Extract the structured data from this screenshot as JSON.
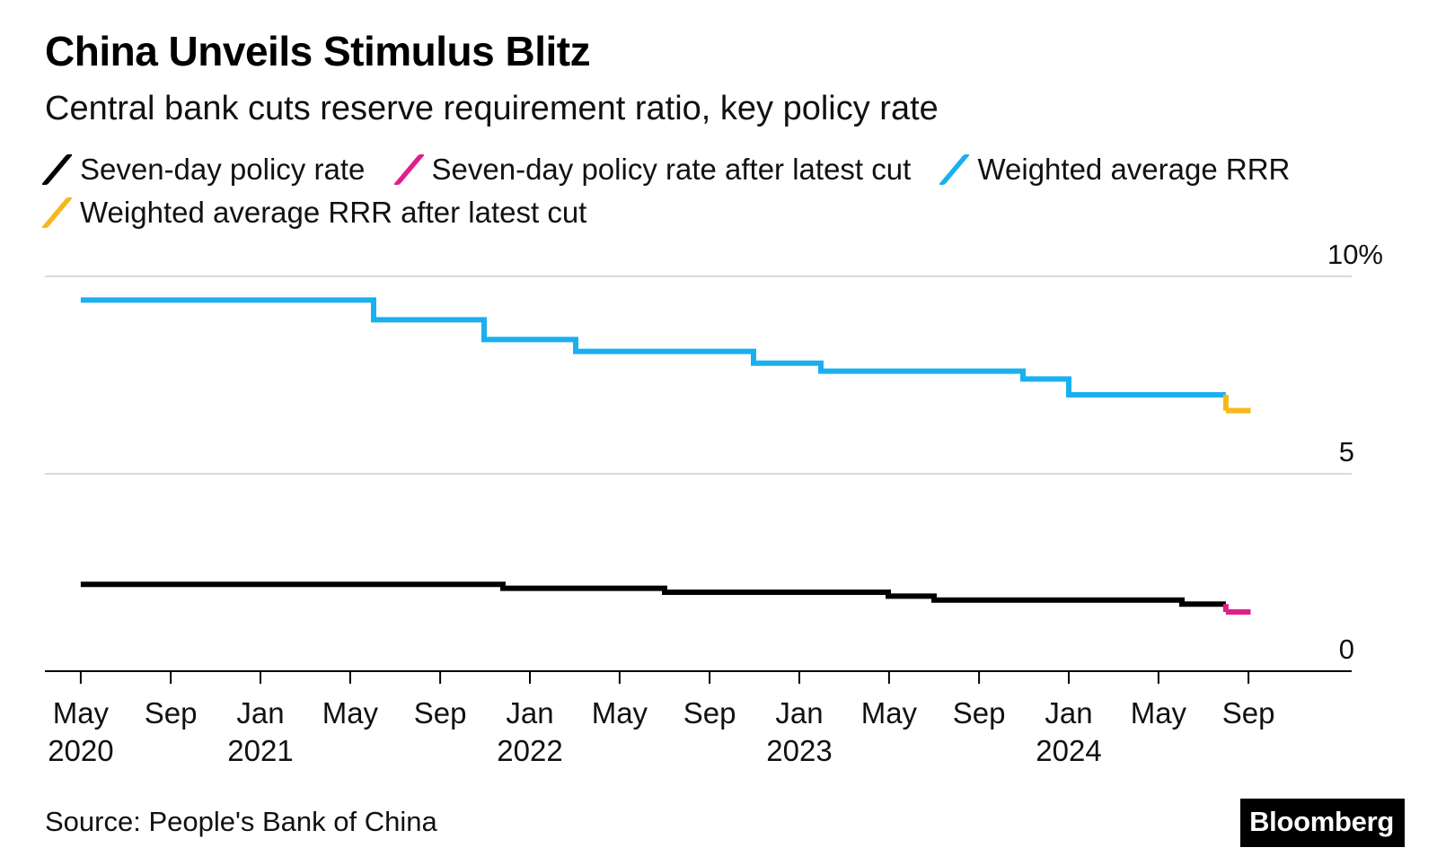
{
  "chart_data": {
    "type": "line",
    "title": "China Unveils Stimulus Blitz",
    "subtitle": "Central bank cuts reserve requirement ratio, key policy rate",
    "ylabel": "",
    "xlabel": "",
    "ylim": [
      0,
      10
    ],
    "yticks": [
      {
        "value": 0,
        "label": "0"
      },
      {
        "value": 5,
        "label": "5"
      },
      {
        "value": 10,
        "label": "10%"
      }
    ],
    "xticks": [
      {
        "date": 2020.333,
        "line1": "May",
        "line2": "2020"
      },
      {
        "date": 2020.667,
        "line1": "Sep",
        "line2": ""
      },
      {
        "date": 2021.0,
        "line1": "Jan",
        "line2": "2021"
      },
      {
        "date": 2021.333,
        "line1": "May",
        "line2": ""
      },
      {
        "date": 2021.667,
        "line1": "Sep",
        "line2": ""
      },
      {
        "date": 2022.0,
        "line1": "Jan",
        "line2": "2022"
      },
      {
        "date": 2022.333,
        "line1": "May",
        "line2": ""
      },
      {
        "date": 2022.667,
        "line1": "Sep",
        "line2": ""
      },
      {
        "date": 2023.0,
        "line1": "Jan",
        "line2": "2023"
      },
      {
        "date": 2023.333,
        "line1": "May",
        "line2": ""
      },
      {
        "date": 2023.667,
        "line1": "Sep",
        "line2": ""
      },
      {
        "date": 2024.0,
        "line1": "Jan",
        "line2": "2024"
      },
      {
        "date": 2024.333,
        "line1": "May",
        "line2": ""
      },
      {
        "date": 2024.667,
        "line1": "Sep",
        "line2": ""
      }
    ],
    "xlim": [
      2020.2,
      2025.05
    ],
    "grid": true,
    "legend_position": "top-left",
    "series": [
      {
        "name": "Seven-day policy rate",
        "color": "#000000",
        "step": true,
        "points": [
          {
            "x": 2020.333,
            "y": 2.2
          },
          {
            "x": 2021.9,
            "y": 2.1
          },
          {
            "x": 2022.5,
            "y": 2.0
          },
          {
            "x": 2023.33,
            "y": 1.9
          },
          {
            "x": 2023.5,
            "y": 1.8
          },
          {
            "x": 2024.42,
            "y": 1.7
          },
          {
            "x": 2024.583,
            "y": 1.7
          }
        ]
      },
      {
        "name": "Seven-day policy rate after latest cut",
        "color": "#e0208a",
        "step": true,
        "points": [
          {
            "x": 2024.583,
            "y": 1.5
          },
          {
            "x": 2024.675,
            "y": 1.5
          }
        ]
      },
      {
        "name": "Weighted average RRR",
        "color": "#1ab0f0",
        "step": true,
        "points": [
          {
            "x": 2020.333,
            "y": 9.4
          },
          {
            "x": 2021.42,
            "y": 8.9
          },
          {
            "x": 2021.83,
            "y": 8.4
          },
          {
            "x": 2022.17,
            "y": 8.1
          },
          {
            "x": 2022.83,
            "y": 7.8
          },
          {
            "x": 2023.08,
            "y": 7.6
          },
          {
            "x": 2023.83,
            "y": 7.4
          },
          {
            "x": 2024.0,
            "y": 7.0
          },
          {
            "x": 2024.583,
            "y": 7.0
          }
        ]
      },
      {
        "name": "Weighted average RRR after latest cut",
        "color": "#f6b71a",
        "step": true,
        "points": [
          {
            "x": 2024.583,
            "y": 6.6
          },
          {
            "x": 2024.675,
            "y": 6.6
          }
        ]
      }
    ]
  },
  "footer": {
    "source": "Source: People's Bank of China",
    "brand": "Bloomberg"
  }
}
